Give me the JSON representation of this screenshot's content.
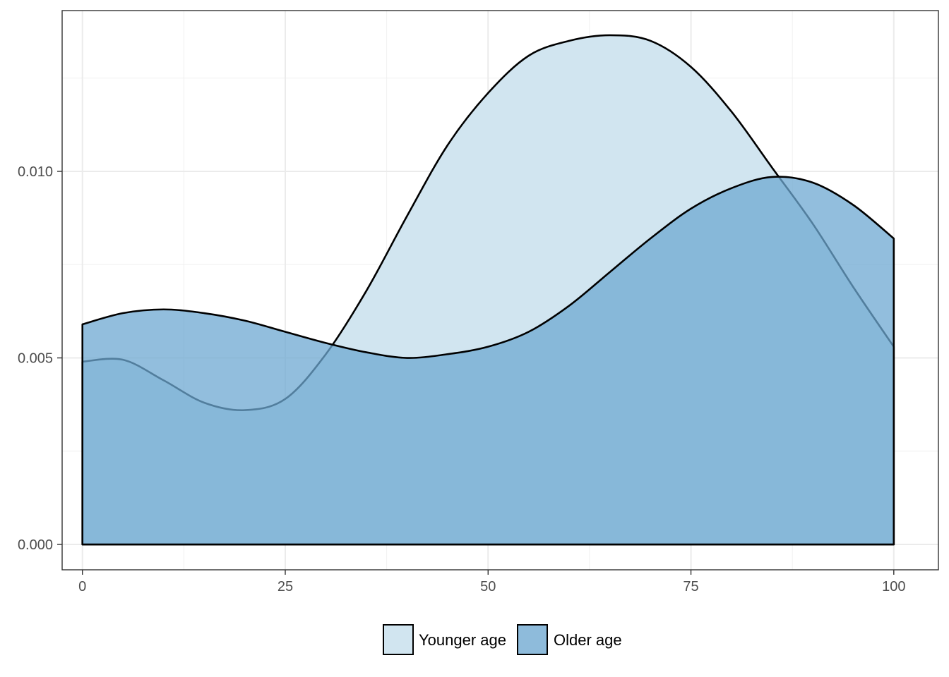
{
  "chart_data": {
    "type": "area",
    "title": "",
    "xlabel": "",
    "ylabel": "",
    "xlim": [
      -2.5,
      105.5
    ],
    "ylim": [
      -0.00068,
      0.01431
    ],
    "x_ticks": [
      0,
      25,
      50,
      75,
      100
    ],
    "x_tick_labels": [
      "0",
      "25",
      "50",
      "75",
      "100"
    ],
    "y_ticks": [
      0.0,
      0.005,
      0.01
    ],
    "y_tick_labels": [
      "0.000",
      "0.005",
      "0.010"
    ],
    "grid": true,
    "legend_position": "bottom",
    "x": [
      0,
      5,
      10,
      15,
      20,
      25,
      30,
      35,
      40,
      45,
      50,
      55,
      60,
      65,
      70,
      75,
      80,
      85,
      90,
      95,
      100
    ],
    "series": [
      {
        "name": "Younger age",
        "color": "#d1e5f0",
        "values": [
          0.0049,
          0.00495,
          0.0044,
          0.0038,
          0.0036,
          0.0039,
          0.0051,
          0.0068,
          0.0088,
          0.0107,
          0.0121,
          0.0131,
          0.0135,
          0.01365,
          0.0135,
          0.0128,
          0.0116,
          0.0101,
          0.0086,
          0.0069,
          0.0053
        ]
      },
      {
        "name": "Older age",
        "color": "#6ea8d1",
        "values": [
          0.0059,
          0.0062,
          0.0063,
          0.0062,
          0.006,
          0.0057,
          0.0054,
          0.00515,
          0.005,
          0.0051,
          0.0053,
          0.0057,
          0.0064,
          0.0073,
          0.0082,
          0.009,
          0.00955,
          0.00985,
          0.0097,
          0.0091,
          0.0082
        ]
      }
    ]
  },
  "legend": {
    "items": [
      {
        "label": "Younger age",
        "color": "#d1e5f0"
      },
      {
        "label": "Older age",
        "color": "#8ebbdb"
      }
    ]
  }
}
